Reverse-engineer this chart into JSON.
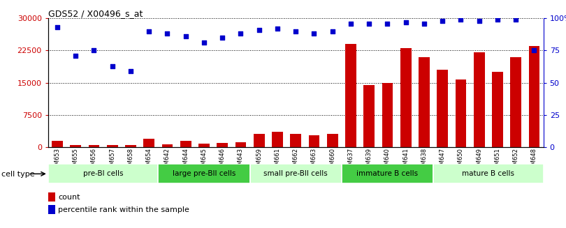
{
  "title": "GDS52 / X00496_s_at",
  "samples": [
    "GSM653",
    "GSM655",
    "GSM656",
    "GSM657",
    "GSM658",
    "GSM654",
    "GSM642",
    "GSM644",
    "GSM645",
    "GSM646",
    "GSM643",
    "GSM659",
    "GSM661",
    "GSM662",
    "GSM663",
    "GSM660",
    "GSM637",
    "GSM639",
    "GSM640",
    "GSM641",
    "GSM638",
    "GSM647",
    "GSM650",
    "GSM649",
    "GSM651",
    "GSM652",
    "GSM648"
  ],
  "counts": [
    1500,
    400,
    400,
    400,
    400,
    2000,
    700,
    1500,
    800,
    900,
    1100,
    3000,
    3500,
    3000,
    2700,
    3000,
    24000,
    14500,
    15000,
    23000,
    21000,
    18000,
    15700,
    22000,
    17500,
    21000,
    23500
  ],
  "percentiles": [
    93,
    71,
    75,
    63,
    59,
    90,
    88,
    86,
    81,
    85,
    88,
    91,
    92,
    90,
    88,
    90,
    96,
    96,
    96,
    97,
    96,
    98,
    99,
    98,
    99,
    99,
    75
  ],
  "cell_types": [
    {
      "label": "pre-BI cells",
      "start": 0,
      "end": 6,
      "color": "#ccffcc"
    },
    {
      "label": "large pre-BII cells",
      "start": 6,
      "end": 11,
      "color": "#44cc44"
    },
    {
      "label": "small pre-BII cells",
      "start": 11,
      "end": 16,
      "color": "#ccffcc"
    },
    {
      "label": "immature B cells",
      "start": 16,
      "end": 21,
      "color": "#44cc44"
    },
    {
      "label": "mature B cells",
      "start": 21,
      "end": 27,
      "color": "#ccffcc"
    }
  ],
  "bar_color": "#cc0000",
  "dot_color": "#0000cc",
  "ylim_left": [
    0,
    30000
  ],
  "ylim_right": [
    0,
    100
  ],
  "yticks_left": [
    0,
    7500,
    15000,
    22500,
    30000
  ],
  "ytick_labels_left": [
    "0",
    "7500",
    "15000",
    "22500",
    "30000"
  ],
  "yticks_right": [
    0,
    25,
    50,
    75,
    100
  ],
  "ytick_labels_right": [
    "0",
    "25",
    "50",
    "75",
    "100%"
  ]
}
